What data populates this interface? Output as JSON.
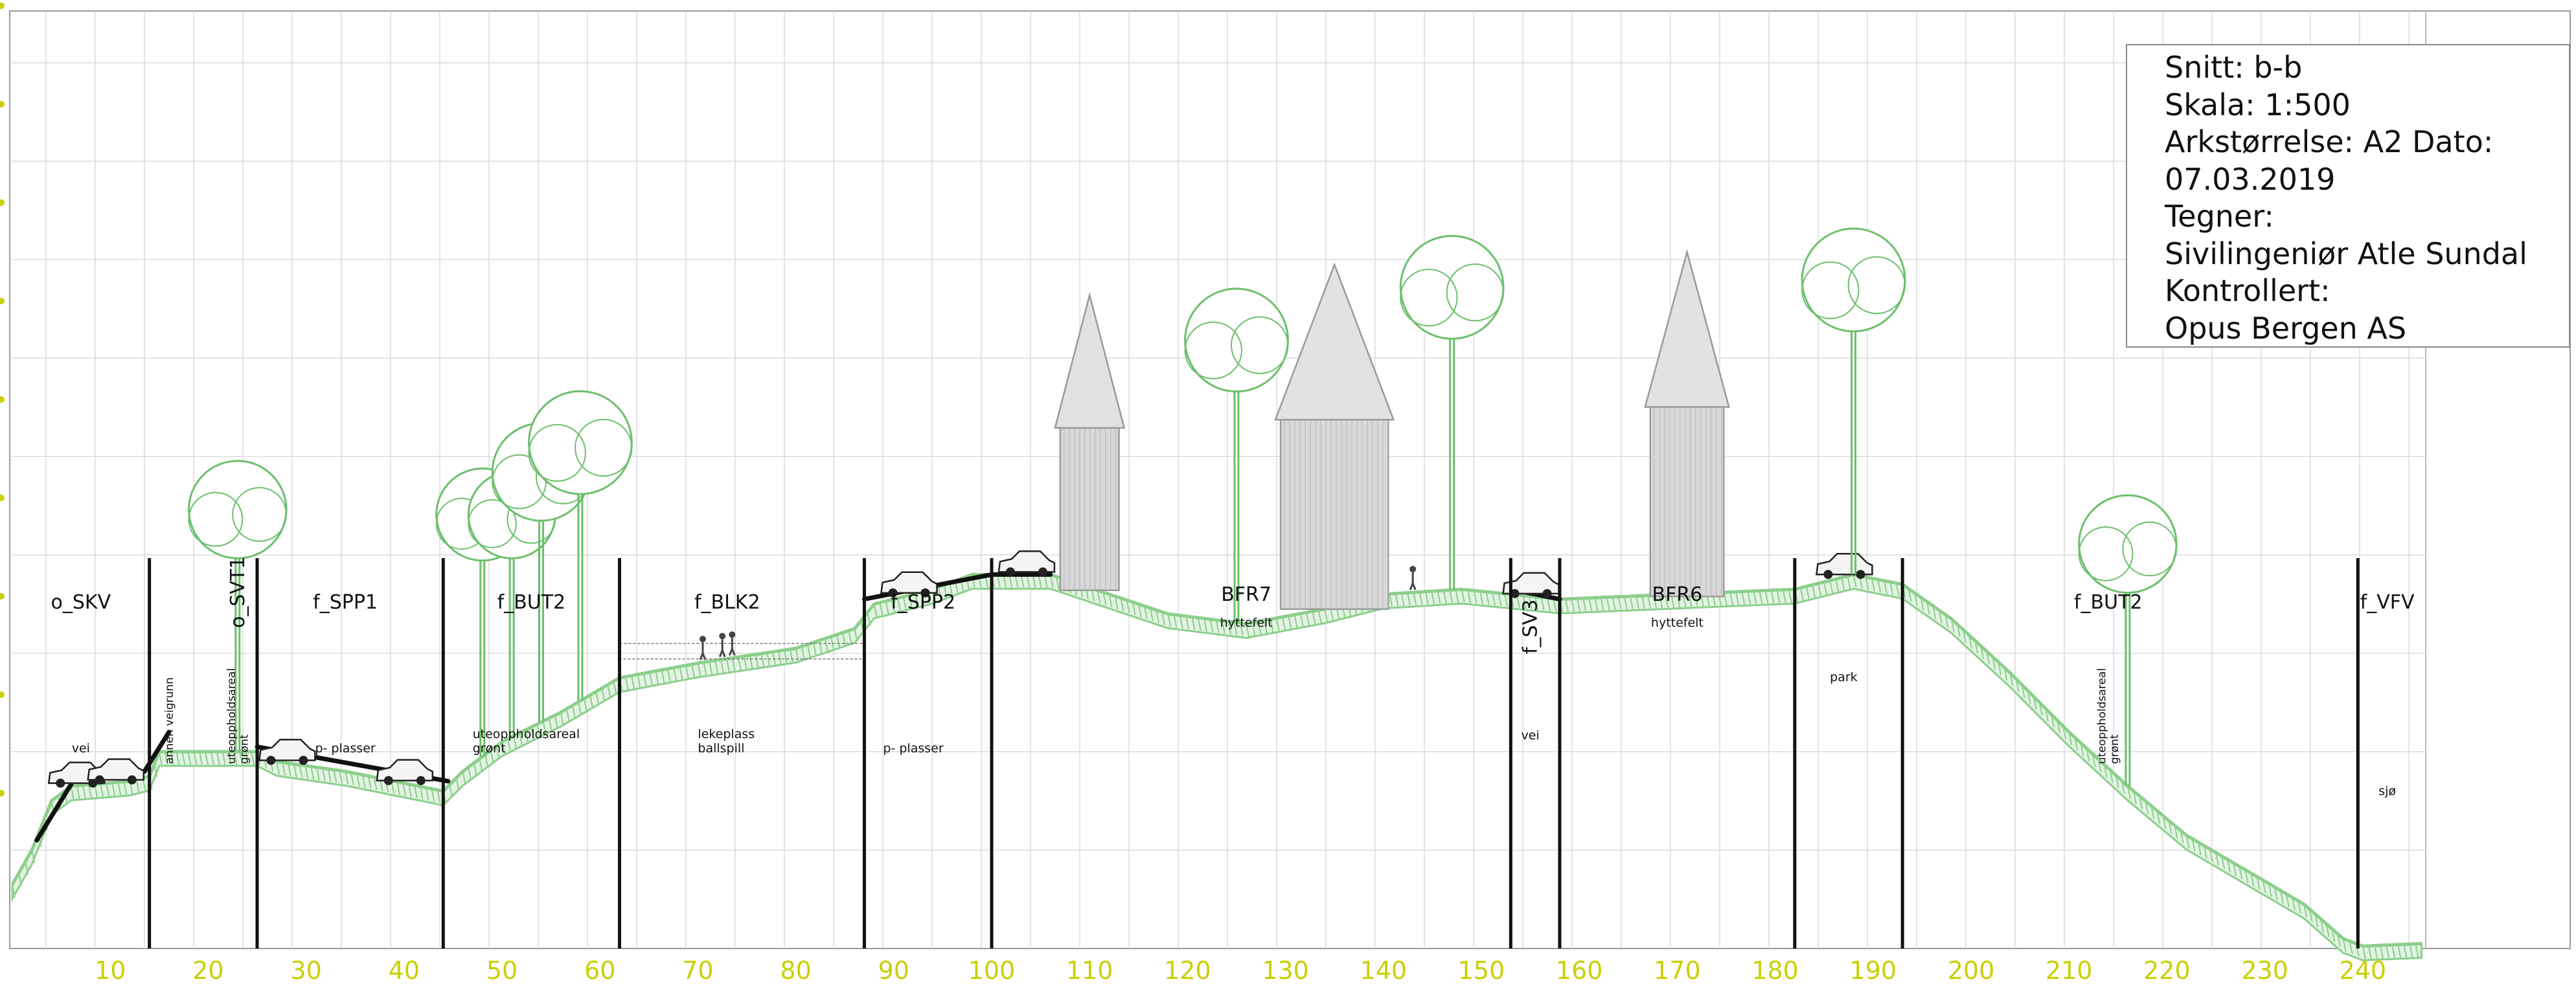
{
  "colors": {
    "axis_text": "#c9d000",
    "grid": "#dcdcdc",
    "terrain": "#8ccf8c",
    "divider": "#111111",
    "road": "#111111",
    "building": "#9a9a9a",
    "tree": "#6cbf6c"
  },
  "axis": {
    "x_ticks": [
      10,
      20,
      30,
      40,
      50,
      60,
      70,
      80,
      90,
      100,
      110,
      120,
      130,
      140,
      150,
      160,
      170,
      180,
      190,
      200,
      210,
      220,
      230,
      240
    ],
    "x_range": [
      0,
      246
    ]
  },
  "title_block": {
    "lines": [
      "Snitt: b-b",
      "Skala: 1:500",
      "Arkstørrelse: A2 Dato:",
      "07.03.2019",
      "Tegner:",
      "Sivilingeniør Atle Sundal",
      "Kontrollert:",
      "Opus Bergen AS"
    ]
  },
  "dividers": [
    14,
    25,
    44,
    62,
    87,
    100,
    153,
    158,
    182,
    193,
    239.5
  ],
  "zones": [
    {
      "code": "o_SKV",
      "x": 7,
      "desc": "vei",
      "desc_x": 7
    },
    {
      "code": "f_SPP1",
      "x": 34,
      "desc": "p- plasser",
      "desc_x": 34
    },
    {
      "code": "f_BUT2",
      "x": 53,
      "desc": "uteoppholdsareal\ngrønt",
      "desc_x": 47
    },
    {
      "code": "f_BLK2",
      "x": 73,
      "desc": "lekeplass\nballspill",
      "desc_x": 70
    },
    {
      "code": "f_SPP2",
      "x": 93,
      "desc": "p- plasser",
      "desc_x": 92
    },
    {
      "code": "BFR7",
      "x": 126,
      "desc": "hyttefelt",
      "desc_x": 126
    },
    {
      "code": "BFR6",
      "x": 170,
      "desc": "hyttefelt",
      "desc_x": 170
    },
    {
      "code": "f_BUT2",
      "x": 214,
      "desc": "",
      "desc_x": 214
    },
    {
      "code": "f_VFV",
      "x": 242.5,
      "desc": "sjø",
      "desc_x": 242.5
    }
  ],
  "vertical_labels": [
    {
      "text": "o_SVT1",
      "x": 23,
      "big": true
    },
    {
      "text": "f_SV3",
      "x": 155,
      "big": true
    },
    {
      "text": "annen veigrunn",
      "x": 16,
      "big": false
    },
    {
      "text": "uteoppholdsareal\ngrønt",
      "x": 23,
      "big": false
    },
    {
      "text": "uteoppholdsareal\ngrønt",
      "x": 214,
      "big": false
    }
  ],
  "extra_labels": [
    {
      "text": "vei",
      "x": 155
    },
    {
      "text": "park",
      "x": 187
    }
  ],
  "terrain_profile": [
    [
      0,
      1.3
    ],
    [
      2,
      2.0
    ],
    [
      4,
      3.0
    ],
    [
      6,
      3.3
    ],
    [
      12,
      3.4
    ],
    [
      14,
      3.5
    ],
    [
      15,
      4.0
    ],
    [
      25,
      4.0
    ],
    [
      27,
      3.8
    ],
    [
      34,
      3.6
    ],
    [
      44,
      3.2
    ],
    [
      46,
      3.6
    ],
    [
      50,
      4.2
    ],
    [
      56,
      4.8
    ],
    [
      62,
      5.5
    ],
    [
      70,
      5.8
    ],
    [
      80,
      6.1
    ],
    [
      86,
      6.5
    ],
    [
      88,
      7.0
    ],
    [
      94,
      7.3
    ],
    [
      98,
      7.6
    ],
    [
      100,
      7.6
    ],
    [
      106,
      7.6
    ],
    [
      112,
      7.2
    ],
    [
      118,
      6.8
    ],
    [
      126,
      6.6
    ],
    [
      134,
      6.9
    ],
    [
      140,
      7.2
    ],
    [
      148,
      7.3
    ],
    [
      153,
      7.2
    ],
    [
      158,
      7.1
    ],
    [
      170,
      7.2
    ],
    [
      182,
      7.3
    ],
    [
      188,
      7.6
    ],
    [
      193,
      7.4
    ],
    [
      198,
      6.7
    ],
    [
      204,
      5.6
    ],
    [
      210,
      4.4
    ],
    [
      216,
      3.3
    ],
    [
      222,
      2.3
    ],
    [
      228,
      1.6
    ],
    [
      234,
      0.9
    ],
    [
      238,
      0.2
    ],
    [
      240,
      0.05
    ],
    [
      246,
      0.1
    ]
  ],
  "roads": [
    [
      [
        2.5,
        2.2
      ],
      [
        6.5,
        3.5
      ],
      [
        13.5,
        3.6
      ],
      [
        16,
        4.4
      ]
    ],
    [
      [
        25,
        4.1
      ],
      [
        44.5,
        3.4
      ]
    ],
    [
      [
        87,
        7.1
      ],
      [
        100,
        7.6
      ],
      [
        106,
        7.6
      ]
    ],
    [
      [
        153,
        7.3
      ],
      [
        158,
        7.1
      ]
    ]
  ],
  "cars": [
    6.5,
    10.5,
    28,
    40,
    91.5,
    103.5,
    155,
    187
  ],
  "buildings": [
    {
      "x": 110,
      "w": 6,
      "h": 6
    },
    {
      "x": 135,
      "w": 11,
      "h": 7
    },
    {
      "x": 171,
      "w": 7.5,
      "h": 7
    }
  ],
  "trees": [
    {
      "x": 23,
      "h": 6,
      "r": 1.8
    },
    {
      "x": 48,
      "h": 6,
      "r": 1.7
    },
    {
      "x": 51,
      "h": 5.5,
      "r": 1.6
    },
    {
      "x": 54,
      "h": 6.2,
      "r": 1.8
    },
    {
      "x": 58,
      "h": 6.4,
      "r": 1.9
    },
    {
      "x": 125,
      "h": 7,
      "r": 1.9
    },
    {
      "x": 147,
      "h": 7.5,
      "r": 1.9
    },
    {
      "x": 188,
      "h": 7.3,
      "r": 1.9
    },
    {
      "x": 216,
      "h": 6,
      "r": 1.8
    }
  ],
  "people": [
    70.5,
    72.5,
    73.5,
    143
  ]
}
